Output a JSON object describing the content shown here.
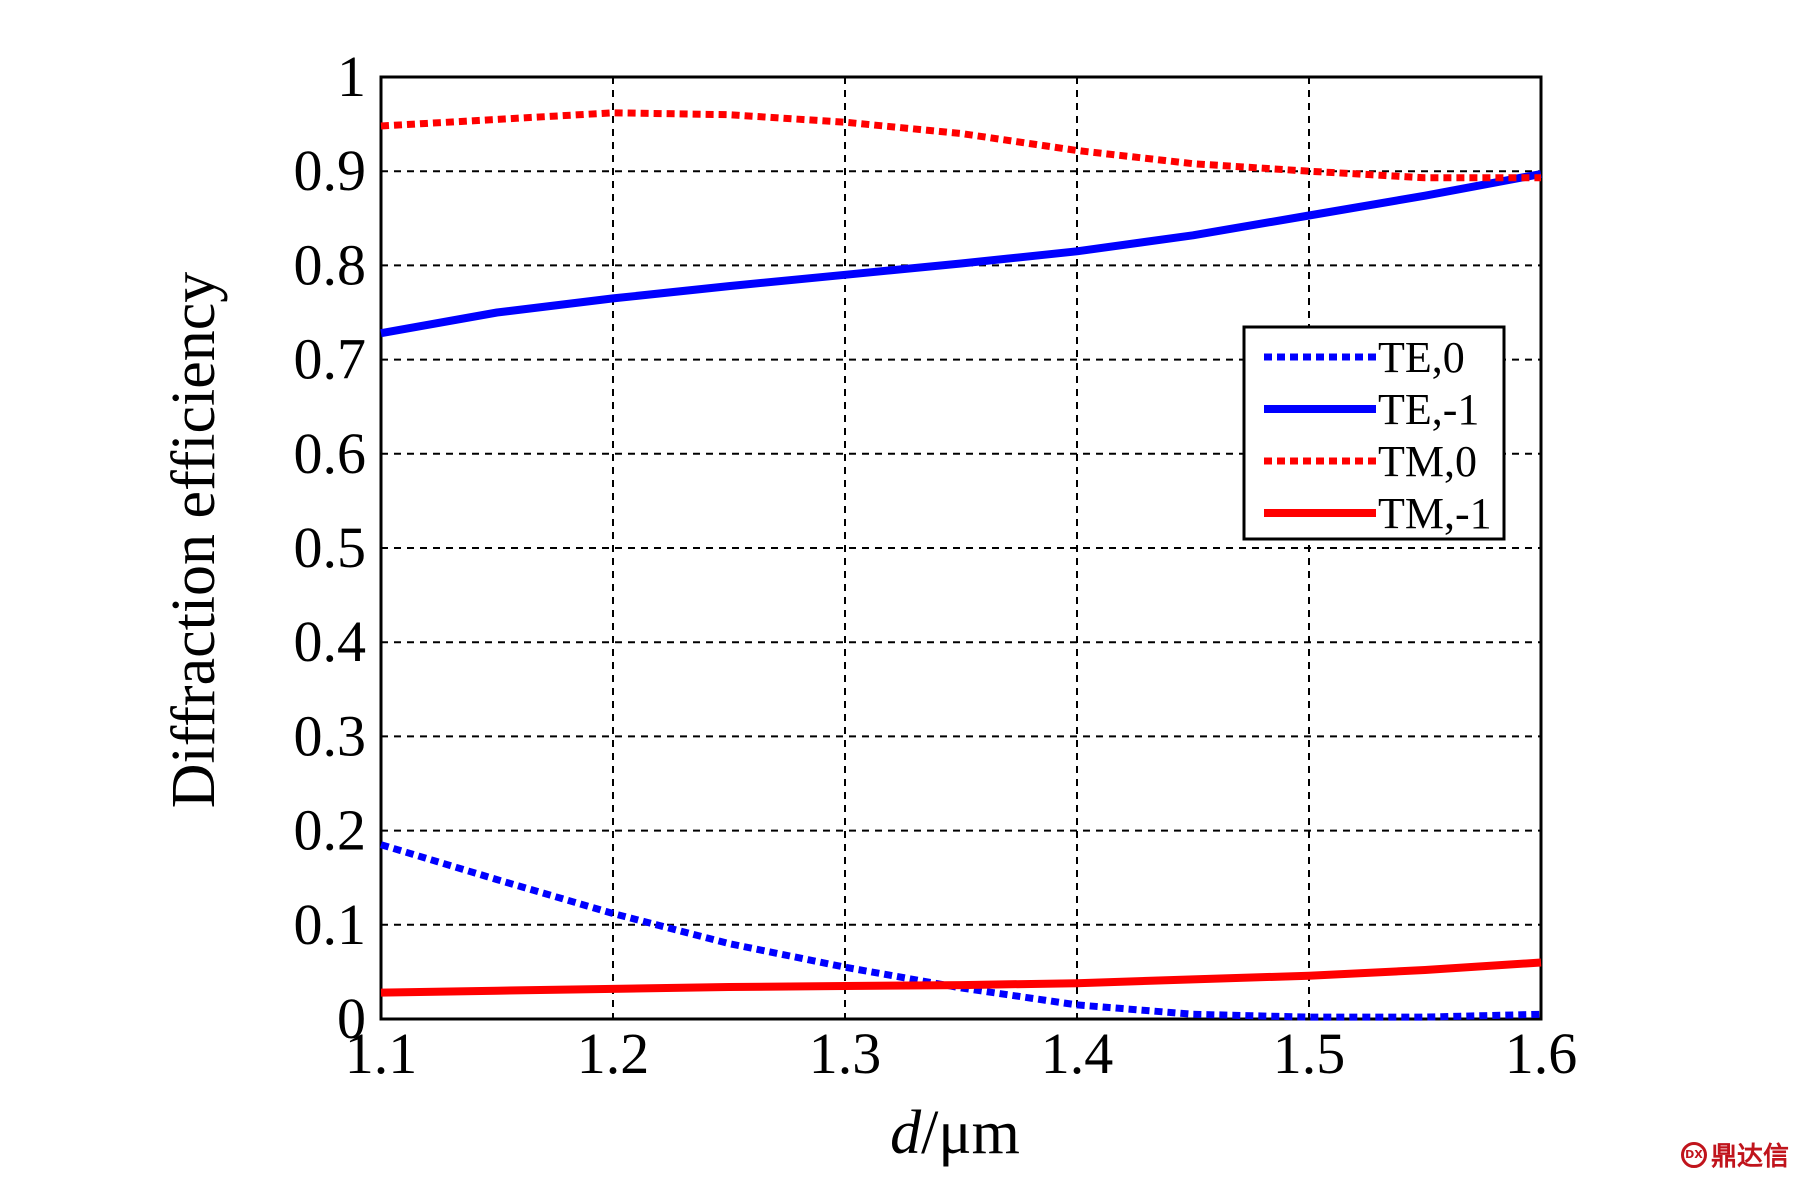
{
  "chart_data": {
    "type": "line",
    "title": "",
    "xlabel_italic": "d",
    "xlabel_rest": "/μm",
    "ylabel": "Diffraction efficiency",
    "xlim": [
      1.1,
      1.6
    ],
    "ylim": [
      0,
      1
    ],
    "x_ticks": [
      "1.1",
      "1.2",
      "1.3",
      "1.4",
      "1.5",
      "1.6"
    ],
    "y_ticks": [
      "0",
      "0.1",
      "0.2",
      "0.3",
      "0.4",
      "0.5",
      "0.6",
      "0.7",
      "0.8",
      "0.9",
      "1"
    ],
    "grid": true,
    "legend_position": "right",
    "x": [
      1.1,
      1.15,
      1.2,
      1.25,
      1.3,
      1.35,
      1.4,
      1.45,
      1.5,
      1.55,
      1.6
    ],
    "series": [
      {
        "name": "TE,0",
        "color": "#0000ff",
        "style": "dotted",
        "values": [
          0.185,
          0.148,
          0.112,
          0.08,
          0.055,
          0.033,
          0.015,
          0.005,
          0.002,
          0.002,
          0.005
        ]
      },
      {
        "name": "TE,-1",
        "color": "#0000ff",
        "style": "solid",
        "values": [
          0.728,
          0.75,
          0.765,
          0.778,
          0.79,
          0.802,
          0.815,
          0.832,
          0.853,
          0.874,
          0.897
        ]
      },
      {
        "name": "TM,0",
        "color": "#ff0000",
        "style": "dotted",
        "values": [
          0.948,
          0.955,
          0.962,
          0.96,
          0.952,
          0.94,
          0.922,
          0.908,
          0.9,
          0.893,
          0.893
        ]
      },
      {
        "name": "TM,-1",
        "color": "#ff0000",
        "style": "solid",
        "values": [
          0.028,
          0.03,
          0.032,
          0.034,
          0.035,
          0.036,
          0.038,
          0.042,
          0.046,
          0.052,
          0.06
        ]
      }
    ]
  },
  "watermark": {
    "text": "鼎达信",
    "seal": "DX"
  }
}
